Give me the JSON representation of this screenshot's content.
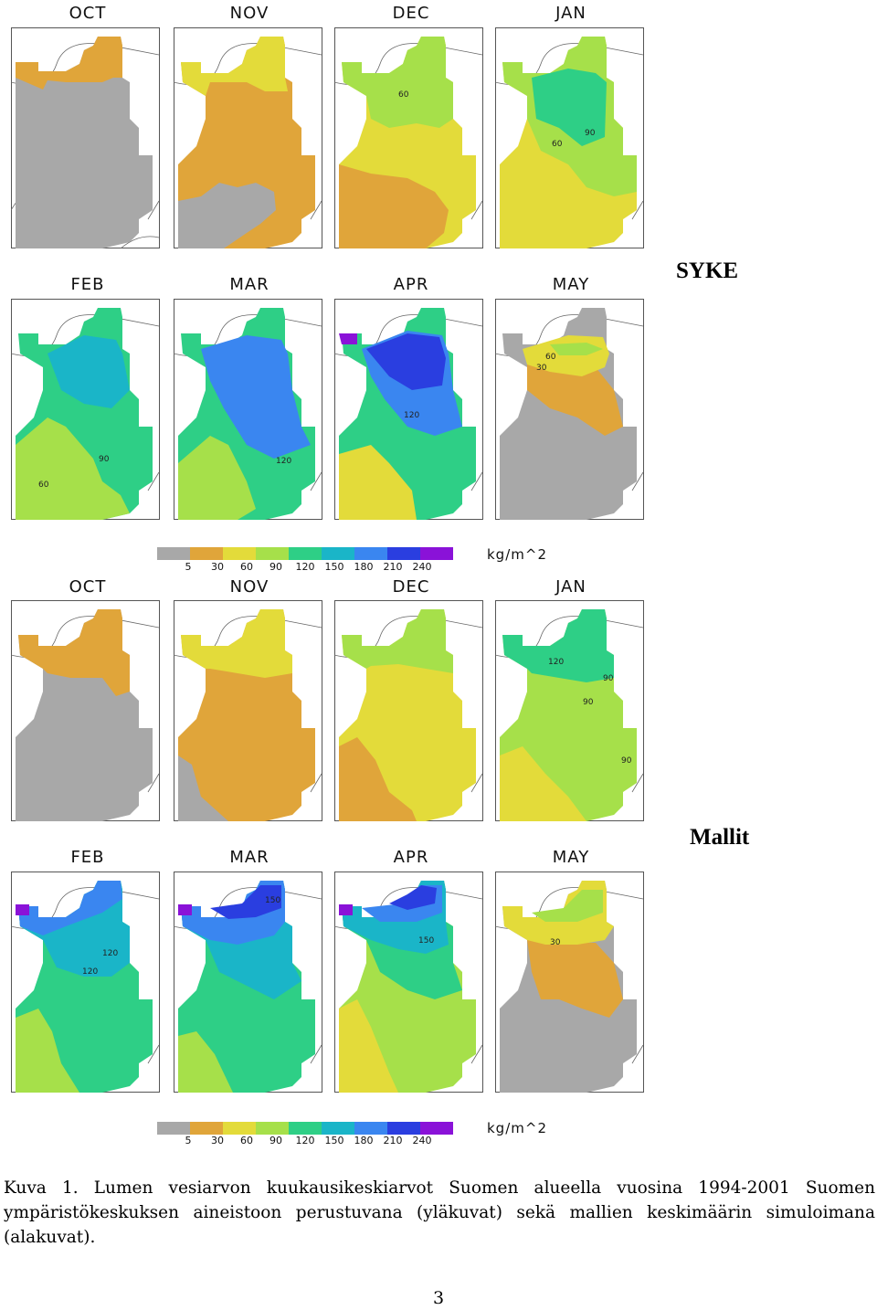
{
  "figure": {
    "top_set": {
      "label": "SYKE",
      "row1_months": [
        "OCT",
        "NOV",
        "DEC",
        "JAN"
      ],
      "row2_months": [
        "FEB",
        "MAR",
        "APR",
        "MAY"
      ]
    },
    "bottom_set": {
      "label": "Mallit",
      "row1_months": [
        "OCT",
        "NOV",
        "DEC",
        "JAN"
      ],
      "row2_months": [
        "FEB",
        "MAR",
        "APR",
        "MAY"
      ]
    },
    "colorbar": {
      "unit": "kg/m^2",
      "ticks": [
        "5",
        "30",
        "60",
        "90",
        "120",
        "150",
        "180",
        "210",
        "240"
      ],
      "colors": [
        "#a8a8a8",
        "#e0a53a",
        "#e3db3a",
        "#a6e04a",
        "#2ecf86",
        "#1ab5c8",
        "#3a86f0",
        "#2a3ee0",
        "#8a12d8"
      ]
    },
    "contour_labels": {
      "syke_dec": "60",
      "syke_jan_a": "60",
      "syke_jan_b": "90",
      "syke_feb_a": "90",
      "syke_feb_b": "60",
      "syke_mar": "120",
      "syke_apr": "120",
      "syke_may_a": "60",
      "syke_may_b": "30",
      "model_jan_a": "120",
      "model_jan_b": "90",
      "model_jan_c": "90",
      "model_jan_d": "90",
      "model_feb_a": "120",
      "model_feb_b": "120",
      "model_mar": "150",
      "model_apr": "150",
      "model_may": "30"
    }
  },
  "caption": "Kuva 1. Lumen vesiarvon kuukausikeskiarvot Suomen alueella vuosina 1994-2001 Suomen ympäristökeskuksen aineistoon perustuvana (yläkuvat) sekä mallien keskimäärin simuloimana (alakuvat).",
  "page_number": "3"
}
